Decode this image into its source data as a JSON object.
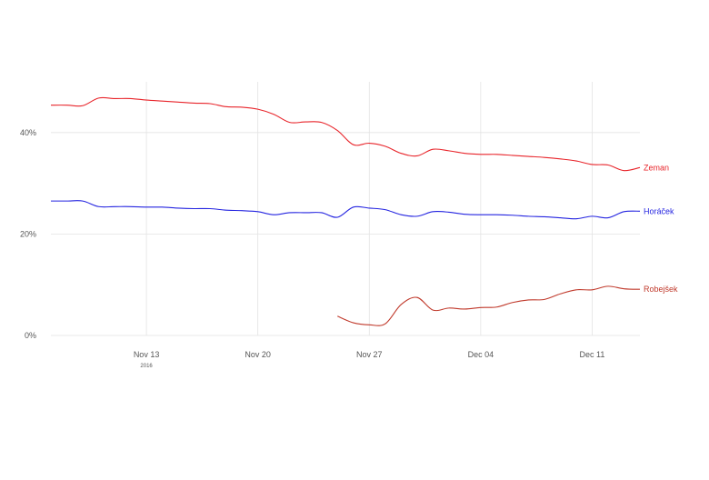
{
  "chart_data": {
    "type": "line",
    "title": "",
    "xlabel": "",
    "ylabel": "",
    "x_ticks": [
      {
        "label": "Nov 13",
        "date": "2016-11-13",
        "sub": "2016"
      },
      {
        "label": "Nov 20",
        "date": "2016-11-20",
        "sub": ""
      },
      {
        "label": "Nov 27",
        "date": "2016-11-27",
        "sub": ""
      },
      {
        "label": "Dec 04",
        "date": "2016-12-04",
        "sub": ""
      },
      {
        "label": "Dec 11",
        "date": "2016-12-11",
        "sub": ""
      }
    ],
    "y_ticks": [
      {
        "label": "0%",
        "value": 0
      },
      {
        "label": "20%",
        "value": 20
      },
      {
        "label": "40%",
        "value": 40
      }
    ],
    "xlim": [
      "2016-11-07",
      "2016-12-14"
    ],
    "ylim": [
      0,
      50
    ],
    "grid": true,
    "legend": "direct labels at right end of lines",
    "series": [
      {
        "name": "Zeman",
        "color": "#e8242a",
        "points": [
          [
            "2016-11-07",
            45.4
          ],
          [
            "2016-11-08",
            45.4
          ],
          [
            "2016-11-09",
            45.3
          ],
          [
            "2016-11-10",
            46.8
          ],
          [
            "2016-11-11",
            46.7
          ],
          [
            "2016-11-12",
            46.7
          ],
          [
            "2016-11-13",
            46.4
          ],
          [
            "2016-11-14",
            46.2
          ],
          [
            "2016-11-15",
            46.0
          ],
          [
            "2016-11-16",
            45.8
          ],
          [
            "2016-11-17",
            45.7
          ],
          [
            "2016-11-18",
            45.1
          ],
          [
            "2016-11-19",
            45.0
          ],
          [
            "2016-11-20",
            44.6
          ],
          [
            "2016-11-21",
            43.6
          ],
          [
            "2016-11-22",
            42.0
          ],
          [
            "2016-11-23",
            42.1
          ],
          [
            "2016-11-24",
            42.0
          ],
          [
            "2016-11-25",
            40.4
          ],
          [
            "2016-11-26",
            37.6
          ],
          [
            "2016-11-27",
            37.9
          ],
          [
            "2016-11-28",
            37.3
          ],
          [
            "2016-11-29",
            35.9
          ],
          [
            "2016-11-30",
            35.4
          ],
          [
            "2016-12-01",
            36.7
          ],
          [
            "2016-12-02",
            36.4
          ],
          [
            "2016-12-03",
            35.9
          ],
          [
            "2016-12-04",
            35.7
          ],
          [
            "2016-12-05",
            35.7
          ],
          [
            "2016-12-06",
            35.5
          ],
          [
            "2016-12-07",
            35.3
          ],
          [
            "2016-12-08",
            35.1
          ],
          [
            "2016-12-09",
            34.8
          ],
          [
            "2016-12-10",
            34.4
          ],
          [
            "2016-12-11",
            33.7
          ],
          [
            "2016-12-12",
            33.6
          ],
          [
            "2016-12-13",
            32.5
          ],
          [
            "2016-12-14",
            33.1
          ]
        ]
      },
      {
        "name": "Horáček",
        "color": "#2424e0",
        "points": [
          [
            "2016-11-07",
            26.5
          ],
          [
            "2016-11-08",
            26.5
          ],
          [
            "2016-11-09",
            26.5
          ],
          [
            "2016-11-10",
            25.4
          ],
          [
            "2016-11-11",
            25.4
          ],
          [
            "2016-11-12",
            25.4
          ],
          [
            "2016-11-13",
            25.3
          ],
          [
            "2016-11-14",
            25.3
          ],
          [
            "2016-11-15",
            25.1
          ],
          [
            "2016-11-16",
            25.0
          ],
          [
            "2016-11-17",
            25.0
          ],
          [
            "2016-11-18",
            24.7
          ],
          [
            "2016-11-19",
            24.6
          ],
          [
            "2016-11-20",
            24.4
          ],
          [
            "2016-11-21",
            23.8
          ],
          [
            "2016-11-22",
            24.2
          ],
          [
            "2016-11-23",
            24.2
          ],
          [
            "2016-11-24",
            24.2
          ],
          [
            "2016-11-25",
            23.3
          ],
          [
            "2016-11-26",
            25.3
          ],
          [
            "2016-11-27",
            25.1
          ],
          [
            "2016-11-28",
            24.8
          ],
          [
            "2016-11-29",
            23.8
          ],
          [
            "2016-11-30",
            23.5
          ],
          [
            "2016-12-01",
            24.4
          ],
          [
            "2016-12-02",
            24.3
          ],
          [
            "2016-12-03",
            23.9
          ],
          [
            "2016-12-04",
            23.8
          ],
          [
            "2016-12-05",
            23.8
          ],
          [
            "2016-12-06",
            23.7
          ],
          [
            "2016-12-07",
            23.5
          ],
          [
            "2016-12-08",
            23.4
          ],
          [
            "2016-12-09",
            23.2
          ],
          [
            "2016-12-10",
            23.0
          ],
          [
            "2016-12-11",
            23.5
          ],
          [
            "2016-12-12",
            23.2
          ],
          [
            "2016-12-13",
            24.4
          ],
          [
            "2016-12-14",
            24.5
          ]
        ]
      },
      {
        "name": "Robejšek",
        "color": "#c0392b",
        "points": [
          [
            "2016-11-25",
            3.8
          ],
          [
            "2016-11-26",
            2.5
          ],
          [
            "2016-11-27",
            2.1
          ],
          [
            "2016-11-28",
            2.3
          ],
          [
            "2016-11-29",
            6.1
          ],
          [
            "2016-11-30",
            7.5
          ],
          [
            "2016-12-01",
            5.0
          ],
          [
            "2016-12-02",
            5.4
          ],
          [
            "2016-12-03",
            5.2
          ],
          [
            "2016-12-04",
            5.5
          ],
          [
            "2016-12-05",
            5.6
          ],
          [
            "2016-12-06",
            6.5
          ],
          [
            "2016-12-07",
            7.0
          ],
          [
            "2016-12-08",
            7.1
          ],
          [
            "2016-12-09",
            8.2
          ],
          [
            "2016-12-10",
            9.0
          ],
          [
            "2016-12-11",
            9.0
          ],
          [
            "2016-12-12",
            9.7
          ],
          [
            "2016-12-13",
            9.2
          ],
          [
            "2016-12-14",
            9.1
          ]
        ]
      }
    ]
  }
}
